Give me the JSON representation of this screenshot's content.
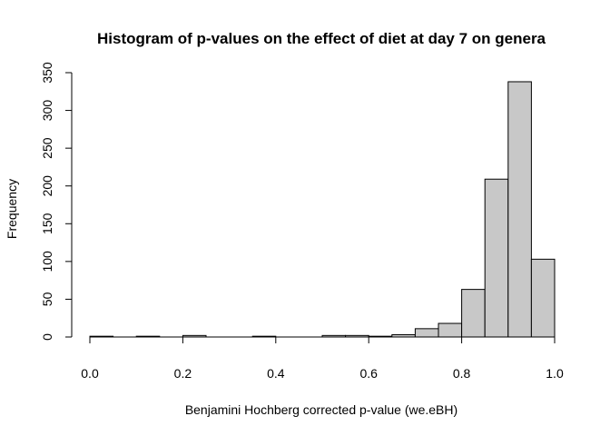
{
  "chart_data": {
    "type": "bar",
    "title": "Histogram of p-values on the effect of diet at day 7 on genera",
    "xlabel": "Benjamini Hochberg corrected p-value (we.eBH)",
    "ylabel": "Frequency",
    "bin_width": 0.05,
    "bins_start": [
      0.0,
      0.05,
      0.1,
      0.15,
      0.2,
      0.25,
      0.3,
      0.35,
      0.4,
      0.45,
      0.5,
      0.55,
      0.6,
      0.65,
      0.7,
      0.75,
      0.8,
      0.85,
      0.9,
      0.95
    ],
    "values": [
      1,
      0,
      1,
      0,
      2,
      0,
      0,
      1,
      0,
      0,
      2,
      2,
      1,
      3,
      11,
      18,
      63,
      209,
      338,
      103
    ],
    "xlim": [
      0,
      1
    ],
    "ylim": [
      0,
      350
    ],
    "x_ticks": [
      0.0,
      0.2,
      0.4,
      0.6,
      0.8,
      1.0
    ],
    "x_tick_labels": [
      "0.0",
      "0.2",
      "0.4",
      "0.6",
      "0.8",
      "1.0"
    ],
    "y_ticks": [
      0,
      50,
      100,
      150,
      200,
      250,
      300,
      350
    ],
    "y_tick_labels": [
      "0",
      "50",
      "100",
      "150",
      "200",
      "250",
      "300",
      "350"
    ],
    "bar_color": "#c8c8c8",
    "grid": false,
    "legend": "none"
  }
}
